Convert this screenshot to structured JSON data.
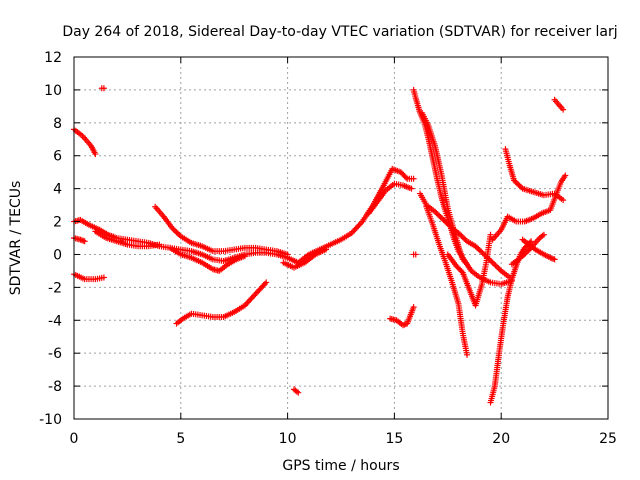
{
  "chart_data": {
    "type": "scatter",
    "title": "Day 264 of 2018, Sidereal Day-to-day VTEC variation (SDTVAR) for receiver larj",
    "xlabel": "GPS time / hours",
    "ylabel": "SDTVAR / TECUs",
    "xlim": [
      0,
      25
    ],
    "ylim": [
      -10,
      12
    ],
    "xticks": [
      0,
      5,
      10,
      15,
      20,
      25
    ],
    "yticks": [
      -10,
      -8,
      -6,
      -4,
      -2,
      0,
      2,
      4,
      6,
      8,
      10,
      12
    ],
    "grid": true,
    "marker": "plus",
    "color": "#ff0000",
    "segments": [
      [
        [
          0.0,
          7.6
        ],
        [
          0.4,
          7.2
        ],
        [
          0.8,
          6.6
        ],
        [
          1.0,
          6.1
        ]
      ],
      [
        [
          1.3,
          10.1
        ],
        [
          1.4,
          10.1
        ]
      ],
      [
        [
          0.0,
          2.0
        ],
        [
          0.3,
          2.1
        ],
        [
          0.7,
          1.8
        ],
        [
          1.2,
          1.5
        ],
        [
          1.6,
          1.2
        ],
        [
          2.0,
          1.0
        ],
        [
          2.5,
          0.9
        ],
        [
          3.0,
          0.8
        ],
        [
          3.5,
          0.7
        ],
        [
          4.0,
          0.5
        ],
        [
          4.5,
          0.4
        ],
        [
          5.0,
          0.3
        ],
        [
          5.5,
          0.2
        ],
        [
          6.0,
          0.0
        ],
        [
          6.5,
          -0.3
        ],
        [
          7.0,
          -0.4
        ],
        [
          7.5,
          -0.2
        ],
        [
          8.0,
          0.0
        ],
        [
          8.5,
          0.1
        ],
        [
          9.0,
          0.1
        ],
        [
          9.5,
          0.0
        ],
        [
          10.0,
          -0.2
        ],
        [
          10.5,
          -0.5
        ],
        [
          11.0,
          0.0
        ],
        [
          11.5,
          0.3
        ],
        [
          12.0,
          0.6
        ],
        [
          12.5,
          0.9
        ],
        [
          13.0,
          1.3
        ],
        [
          13.5,
          2.0
        ],
        [
          14.0,
          3.0
        ],
        [
          14.5,
          4.2
        ],
        [
          14.9,
          5.2
        ],
        [
          15.3,
          5.0
        ],
        [
          15.6,
          4.6
        ],
        [
          15.9,
          4.6
        ]
      ],
      [
        [
          0.0,
          1.0
        ],
        [
          0.3,
          0.9
        ],
        [
          0.5,
          0.8
        ]
      ],
      [
        [
          0.0,
          -1.2
        ],
        [
          0.5,
          -1.5
        ],
        [
          1.0,
          -1.5
        ],
        [
          1.4,
          -1.4
        ]
      ],
      [
        [
          1.0,
          1.4
        ],
        [
          1.5,
          1.0
        ],
        [
          2.0,
          0.8
        ],
        [
          2.5,
          0.6
        ],
        [
          3.0,
          0.5
        ],
        [
          3.5,
          0.5
        ],
        [
          4.0,
          0.6
        ]
      ],
      [
        [
          3.8,
          2.9
        ],
        [
          4.2,
          2.3
        ],
        [
          4.6,
          1.6
        ],
        [
          5.0,
          1.1
        ],
        [
          5.5,
          0.7
        ],
        [
          6.0,
          0.5
        ],
        [
          6.5,
          0.2
        ],
        [
          7.0,
          0.2
        ],
        [
          7.5,
          0.3
        ],
        [
          8.0,
          0.4
        ],
        [
          8.5,
          0.4
        ],
        [
          9.0,
          0.3
        ],
        [
          9.5,
          0.2
        ],
        [
          10.0,
          0.0
        ]
      ],
      [
        [
          4.5,
          0.4
        ],
        [
          5.0,
          0.0
        ],
        [
          5.5,
          -0.2
        ],
        [
          6.0,
          -0.5
        ],
        [
          6.5,
          -0.9
        ],
        [
          6.8,
          -1.0
        ],
        [
          7.2,
          -0.6
        ],
        [
          7.6,
          -0.3
        ],
        [
          8.0,
          -0.1
        ]
      ],
      [
        [
          4.8,
          -4.2
        ],
        [
          5.1,
          -3.9
        ],
        [
          5.5,
          -3.6
        ],
        [
          6.0,
          -3.7
        ],
        [
          6.5,
          -3.8
        ],
        [
          7.0,
          -3.8
        ],
        [
          7.5,
          -3.5
        ],
        [
          8.0,
          -3.1
        ],
        [
          8.5,
          -2.4
        ],
        [
          9.0,
          -1.7
        ]
      ],
      [
        [
          10.3,
          -8.2
        ],
        [
          10.5,
          -8.4
        ]
      ],
      [
        [
          9.8,
          -0.5
        ],
        [
          10.3,
          -0.8
        ],
        [
          10.8,
          -0.5
        ],
        [
          11.3,
          0.0
        ],
        [
          11.8,
          0.3
        ]
      ],
      [
        [
          13.8,
          2.5
        ],
        [
          14.2,
          3.2
        ],
        [
          14.6,
          3.9
        ],
        [
          15.0,
          4.3
        ],
        [
          15.4,
          4.2
        ],
        [
          15.8,
          4.0
        ]
      ],
      [
        [
          14.8,
          -3.9
        ],
        [
          15.1,
          -4.0
        ],
        [
          15.4,
          -4.3
        ],
        [
          15.6,
          -4.2
        ],
        [
          15.9,
          -3.2
        ]
      ],
      [
        [
          15.9,
          0.0
        ],
        [
          16.0,
          0.0
        ]
      ],
      [
        [
          15.9,
          10.0
        ],
        [
          16.0,
          9.5
        ],
        [
          16.2,
          8.6
        ],
        [
          16.4,
          8.0
        ],
        [
          16.6,
          7.0
        ],
        [
          16.8,
          5.8
        ],
        [
          17.0,
          4.6
        ],
        [
          17.2,
          3.5
        ],
        [
          17.4,
          2.6
        ],
        [
          17.6,
          1.8
        ],
        [
          17.8,
          0.9
        ],
        [
          18.0,
          0.2
        ],
        [
          18.3,
          -0.4
        ],
        [
          18.6,
          -1.0
        ],
        [
          19.0,
          -1.4
        ],
        [
          19.5,
          -1.7
        ],
        [
          20.0,
          -1.8
        ],
        [
          20.5,
          -1.6
        ]
      ],
      [
        [
          16.3,
          8.6
        ],
        [
          16.6,
          7.8
        ],
        [
          16.9,
          6.6
        ],
        [
          17.2,
          4.9
        ],
        [
          17.5,
          2.8
        ],
        [
          17.8,
          1.4
        ],
        [
          18.0,
          0.5
        ],
        [
          18.2,
          -0.3
        ],
        [
          18.4,
          -0.6
        ]
      ],
      [
        [
          16.2,
          3.7
        ],
        [
          16.5,
          3.0
        ],
        [
          16.9,
          2.6
        ],
        [
          17.3,
          2.1
        ],
        [
          17.7,
          1.6
        ],
        [
          18.0,
          1.3
        ],
        [
          18.4,
          0.8
        ],
        [
          18.8,
          0.5
        ],
        [
          19.2,
          0.0
        ],
        [
          19.6,
          -0.5
        ],
        [
          20.0,
          -1.0
        ],
        [
          20.4,
          -1.4
        ]
      ],
      [
        [
          16.5,
          2.9
        ],
        [
          16.8,
          1.8
        ],
        [
          17.1,
          0.6
        ],
        [
          17.4,
          -0.5
        ],
        [
          17.7,
          -1.7
        ],
        [
          18.0,
          -3.0
        ],
        [
          18.2,
          -4.8
        ],
        [
          18.4,
          -6.1
        ]
      ],
      [
        [
          17.5,
          0.0
        ],
        [
          17.9,
          -0.7
        ],
        [
          18.2,
          -1.1
        ],
        [
          18.5,
          -2.1
        ],
        [
          18.8,
          -3.1
        ],
        [
          19.1,
          -1.8
        ],
        [
          19.3,
          -0.5
        ],
        [
          19.5,
          1.2
        ]
      ],
      [
        [
          19.5,
          -9.0
        ],
        [
          19.7,
          -8.0
        ],
        [
          19.9,
          -6.0
        ],
        [
          20.1,
          -4.2
        ],
        [
          20.3,
          -2.6
        ],
        [
          20.5,
          -1.5
        ],
        [
          20.7,
          -0.7
        ],
        [
          20.9,
          0.0
        ],
        [
          21.1,
          0.4
        ],
        [
          21.4,
          0.8
        ]
      ],
      [
        [
          20.2,
          6.4
        ],
        [
          20.4,
          5.4
        ],
        [
          20.6,
          4.5
        ],
        [
          21.0,
          4.0
        ],
        [
          21.5,
          3.8
        ],
        [
          22.0,
          3.6
        ],
        [
          22.5,
          3.7
        ],
        [
          22.9,
          3.3
        ]
      ],
      [
        [
          19.6,
          0.9
        ],
        [
          20.0,
          1.5
        ],
        [
          20.3,
          2.3
        ],
        [
          20.7,
          2.0
        ],
        [
          21.1,
          2.0
        ],
        [
          21.5,
          2.2
        ],
        [
          21.9,
          2.5
        ],
        [
          22.3,
          2.7
        ],
        [
          22.8,
          4.4
        ],
        [
          23.0,
          4.8
        ]
      ],
      [
        [
          21.0,
          0.9
        ],
        [
          21.3,
          0.6
        ],
        [
          21.6,
          0.3
        ],
        [
          22.0,
          0.0
        ],
        [
          22.3,
          -0.2
        ],
        [
          22.5,
          -0.3
        ]
      ],
      [
        [
          20.5,
          -0.6
        ],
        [
          21.0,
          -0.1
        ],
        [
          21.4,
          0.4
        ],
        [
          21.8,
          1.0
        ],
        [
          22.0,
          1.2
        ]
      ],
      [
        [
          22.5,
          9.4
        ],
        [
          22.7,
          9.1
        ],
        [
          22.9,
          8.8
        ]
      ]
    ]
  }
}
